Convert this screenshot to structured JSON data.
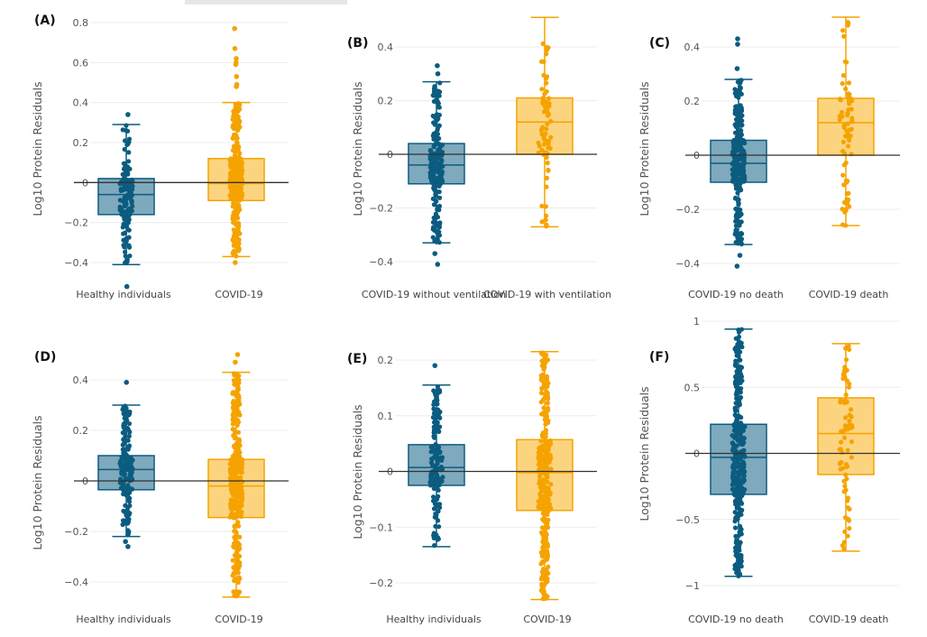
{
  "chart_data": [
    {
      "panel": "(A)",
      "type": "box",
      "ylabel": "Log10 Protein Residuals",
      "ylim": [
        -0.45,
        0.82
      ],
      "yticks": [
        0.8,
        0.6,
        0.4,
        0.2,
        0,
        -0.2,
        -0.4
      ],
      "ytick_labels": [
        "0.8",
        "0.6",
        "0.4",
        "0.2",
        "0",
        "−0.2",
        "−0.4"
      ],
      "grid": true,
      "categories": [
        "Healthy individuals",
        "COVID-19"
      ],
      "series": [
        {
          "category": "Healthy individuals",
          "color": "#0b5c80",
          "whisker_low": -0.41,
          "q1": -0.16,
          "median": -0.06,
          "q3": 0.02,
          "whisker_high": 0.29,
          "outliers": [
            0.34,
            -0.52
          ]
        },
        {
          "category": "COVID-19",
          "color": "#f5a300",
          "whisker_low": -0.37,
          "q1": -0.09,
          "median": -0.005,
          "q3": 0.12,
          "whisker_high": 0.4,
          "outliers": [
            0.48,
            0.49,
            0.53,
            0.59,
            0.6,
            0.62,
            0.67,
            0.77,
            -0.4
          ]
        }
      ]
    },
    {
      "panel": "(B)",
      "type": "box",
      "ylabel": "Log10 Protein Residuals",
      "ylim": [
        -0.43,
        0.52
      ],
      "yticks": [
        0.4,
        0.2,
        0,
        -0.2,
        -0.4
      ],
      "ytick_labels": [
        "0.4",
        "0.2",
        "0",
        "−0.2",
        "−0.4"
      ],
      "grid": true,
      "categories": [
        "COVID-19 without ventilation",
        "COVID-19 with ventilation"
      ],
      "series": [
        {
          "category": "COVID-19 without ventilation",
          "color": "#0b5c80",
          "whisker_low": -0.33,
          "q1": -0.11,
          "median": -0.04,
          "q3": 0.04,
          "whisker_high": 0.27,
          "outliers": [
            0.3,
            0.33,
            -0.37,
            -0.41
          ]
        },
        {
          "category": "COVID-19 with ventilation",
          "color": "#f5a300",
          "whisker_low": -0.27,
          "q1": 0.0,
          "median": 0.12,
          "q3": 0.21,
          "whisker_high": 0.51,
          "outliers": []
        }
      ]
    },
    {
      "panel": "(C)",
      "type": "box",
      "ylabel": "Log10 Protein Residuals",
      "ylim": [
        -0.43,
        0.52
      ],
      "yticks": [
        0.4,
        0.2,
        0,
        -0.2,
        -0.4
      ],
      "ytick_labels": [
        "0.4",
        "0.2",
        "0",
        "−0.2",
        "−0.4"
      ],
      "grid": true,
      "categories": [
        "COVID-19 no death",
        "COVID-19 death"
      ],
      "series": [
        {
          "category": "COVID-19 no death",
          "color": "#0b5c80",
          "whisker_low": -0.33,
          "q1": -0.1,
          "median": -0.03,
          "q3": 0.055,
          "whisker_high": 0.28,
          "outliers": [
            0.32,
            0.41,
            0.43,
            -0.37,
            -0.41
          ]
        },
        {
          "category": "COVID-19 death",
          "color": "#f5a300",
          "whisker_low": -0.26,
          "q1": 0.0,
          "median": 0.12,
          "q3": 0.21,
          "whisker_high": 0.51,
          "outliers": []
        }
      ]
    },
    {
      "panel": "(D)",
      "type": "box",
      "ylabel": "Log10 Protein Residuals",
      "ylim": [
        -0.48,
        0.52
      ],
      "yticks": [
        0.4,
        0.2,
        0,
        -0.2,
        -0.4
      ],
      "ytick_labels": [
        "0.4",
        "0.2",
        "0",
        "−0.2",
        "−0.4"
      ],
      "grid": true,
      "categories": [
        "Healthy individuals",
        "COVID-19"
      ],
      "series": [
        {
          "category": "Healthy individuals",
          "color": "#0b5c80",
          "whisker_low": -0.22,
          "q1": -0.035,
          "median": 0.045,
          "q3": 0.1,
          "whisker_high": 0.3,
          "outliers": [
            0.39,
            -0.24,
            -0.26
          ]
        },
        {
          "category": "COVID-19",
          "color": "#f5a300",
          "whisker_low": -0.46,
          "q1": -0.145,
          "median": -0.02,
          "q3": 0.085,
          "whisker_high": 0.43,
          "outliers": [
            0.47,
            0.5
          ]
        }
      ]
    },
    {
      "panel": "(E)",
      "type": "box",
      "ylabel": "Log10 Protein Residuals",
      "ylim": [
        -0.235,
        0.22
      ],
      "yticks": [
        0.2,
        0.1,
        0,
        -0.1,
        -0.2
      ],
      "ytick_labels": [
        "0.2",
        "0.1",
        "0",
        "−0.1",
        "−0.2"
      ],
      "grid": true,
      "categories": [
        "Healthy individuals",
        "COVID-19"
      ],
      "series": [
        {
          "category": "Healthy individuals",
          "color": "#0b5c80",
          "whisker_low": -0.135,
          "q1": -0.025,
          "median": 0.007,
          "q3": 0.048,
          "whisker_high": 0.155,
          "outliers": [
            0.19
          ]
        },
        {
          "category": "COVID-19",
          "color": "#f5a300",
          "whisker_low": -0.23,
          "q1": -0.07,
          "median": -0.002,
          "q3": 0.057,
          "whisker_high": 0.215,
          "outliers": []
        }
      ]
    },
    {
      "panel": "(F)",
      "type": "box",
      "ylabel": "Log10 Protein Residuals",
      "ylim": [
        -1.05,
        1.02
      ],
      "yticks": [
        1,
        0.5,
        0,
        -0.5,
        -1
      ],
      "ytick_labels": [
        "1",
        "0.5",
        "0",
        "−0.5",
        "−1"
      ],
      "grid": true,
      "categories": [
        "COVID-19 no death",
        "COVID-19 death"
      ],
      "series": [
        {
          "category": "COVID-19 no death",
          "color": "#0b5c80",
          "whisker_low": -0.93,
          "q1": -0.31,
          "median": -0.03,
          "q3": 0.22,
          "whisker_high": 0.94,
          "outliers": []
        },
        {
          "category": "COVID-19 death",
          "color": "#f5a300",
          "whisker_low": -0.74,
          "q1": -0.16,
          "median": 0.15,
          "q3": 0.42,
          "whisker_high": 0.83,
          "outliers": []
        }
      ]
    }
  ]
}
